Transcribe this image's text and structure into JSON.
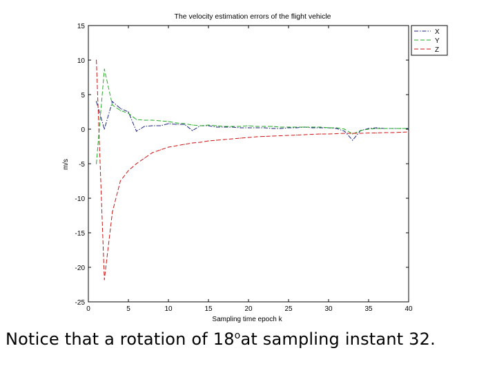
{
  "chart_data": {
    "type": "line",
    "title": "The velocity estimation errors of the flight vehicle",
    "xlabel": "Sampling time epoch k",
    "ylabel": "m/s",
    "xlim": [
      0,
      40
    ],
    "ylim": [
      -25,
      15
    ],
    "xticks": [
      "0",
      "5",
      "10",
      "15",
      "20",
      "25",
      "30",
      "35",
      "40"
    ],
    "yticks": [
      "15",
      "10",
      "5",
      "0",
      "-5",
      "-10",
      "-15",
      "-20",
      "-25"
    ],
    "legend_position": "top-right",
    "series": [
      {
        "name": "X",
        "color": "#1a237e",
        "style": "dash-dot",
        "x": [
          1,
          2,
          3,
          4,
          5,
          6,
          7,
          8,
          9,
          10,
          11,
          12,
          13,
          14,
          15,
          16,
          17,
          18,
          19,
          20,
          21,
          22,
          23,
          24,
          25,
          26,
          27,
          28,
          29,
          30,
          31,
          32,
          33,
          34,
          35,
          36,
          37,
          38,
          39,
          40
        ],
        "y": [
          4.0,
          0.0,
          4.0,
          3.0,
          2.5,
          -0.3,
          0.4,
          0.5,
          0.5,
          0.8,
          0.7,
          0.7,
          -0.2,
          0.5,
          0.5,
          0.3,
          0.3,
          0.3,
          0.2,
          0.2,
          0.2,
          0.2,
          0.1,
          0.1,
          0.2,
          0.2,
          0.3,
          0.2,
          0.2,
          0.2,
          0.1,
          -0.3,
          -1.6,
          -0.2,
          0.1,
          0.2,
          0.1,
          0.1,
          0.1,
          0.1
        ]
      },
      {
        "name": "Y",
        "color": "#22aa22",
        "style": "dash",
        "x": [
          1,
          2,
          3,
          4,
          5,
          6,
          7,
          8,
          9,
          10,
          11,
          12,
          13,
          14,
          15,
          16,
          17,
          18,
          19,
          20,
          21,
          22,
          23,
          24,
          25,
          26,
          27,
          28,
          29,
          30,
          31,
          32,
          33,
          34,
          35,
          36,
          37,
          38,
          39,
          40
        ],
        "y": [
          -5.0,
          8.7,
          3.5,
          2.7,
          2.3,
          1.4,
          1.3,
          1.3,
          1.2,
          1.1,
          0.9,
          0.8,
          0.6,
          0.5,
          0.6,
          0.5,
          0.4,
          0.4,
          0.4,
          0.5,
          0.4,
          0.4,
          0.4,
          0.3,
          0.3,
          0.3,
          0.3,
          0.3,
          0.3,
          0.2,
          0.2,
          0.0,
          -0.7,
          -0.2,
          0.0,
          0.1,
          0.1,
          0.1,
          0.1,
          0.1
        ]
      },
      {
        "name": "Z",
        "color": "#cc1111",
        "style": "dash",
        "x": [
          1,
          2,
          3,
          4,
          5,
          6,
          7,
          8,
          9,
          10,
          11,
          12,
          13,
          14,
          15,
          16,
          17,
          18,
          19,
          20,
          21,
          22,
          23,
          24,
          25,
          26,
          27,
          28,
          29,
          30,
          31,
          32,
          33,
          34,
          35,
          36,
          37,
          38,
          39,
          40
        ],
        "y": [
          10.0,
          -21.8,
          -12.0,
          -7.5,
          -6.0,
          -5.0,
          -4.2,
          -3.4,
          -3.0,
          -2.6,
          -2.4,
          -2.2,
          -2.0,
          -1.9,
          -1.7,
          -1.6,
          -1.5,
          -1.4,
          -1.3,
          -1.2,
          -1.1,
          -1.05,
          -1.0,
          -0.95,
          -0.9,
          -0.85,
          -0.8,
          -0.75,
          -0.7,
          -0.7,
          -0.65,
          -0.6,
          -0.6,
          -0.6,
          -0.55,
          -0.55,
          -0.5,
          -0.5,
          -0.45,
          -0.4
        ]
      }
    ]
  },
  "caption": {
    "text_before": "Notice that a rotation of ",
    "degree_value": "18",
    "degree_symbol": "o",
    "text_after": "at sampling instant 32."
  }
}
